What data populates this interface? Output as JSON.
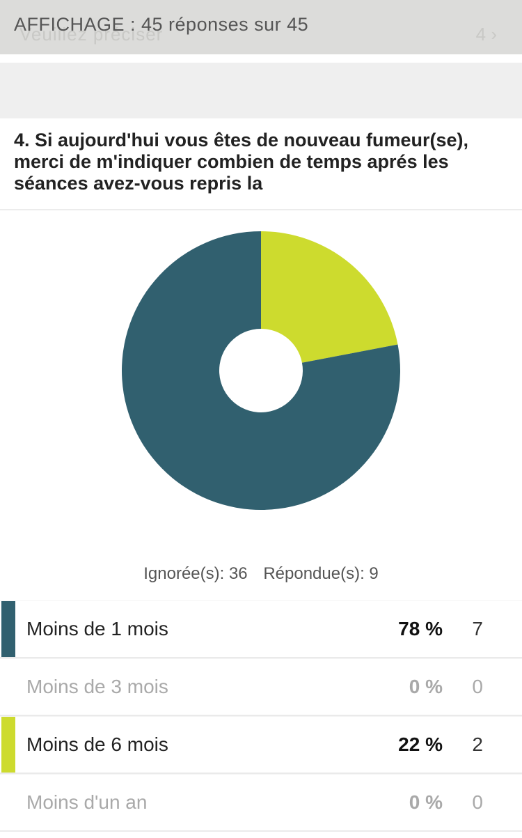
{
  "header": {
    "display_label": "AFFICHAGE : 45 réponses sur 45",
    "ghost_text": "Veuillez préciser",
    "ghost_number": "4 ›"
  },
  "question": {
    "text": "4. Si aujourd'hui vous êtes de nouveau fumeur(se), merci de m'indiquer combien de temps aprés les séances avez-vous repris la"
  },
  "summary": {
    "skipped": "Ignorée(s): 36",
    "answered": "Répondue(s): 9"
  },
  "answers": [
    {
      "label": "Moins de 1 mois",
      "pct": "78 %",
      "count": "7",
      "color": "#31606f",
      "muted": false
    },
    {
      "label": "Moins de 3 mois",
      "pct": "0 %",
      "count": "0",
      "color": "",
      "muted": true
    },
    {
      "label": "Moins de 6 mois",
      "pct": "22 %",
      "count": "2",
      "color": "#cddb2e",
      "muted": false
    },
    {
      "label": "Moins d'un an",
      "pct": "0 %",
      "count": "0",
      "color": "",
      "muted": true
    }
  ],
  "chart_data": {
    "type": "pie",
    "donut": true,
    "categories": [
      "Moins de 1 mois",
      "Moins de 3 mois",
      "Moins de 6 mois",
      "Moins d'un an"
    ],
    "values": [
      78,
      0,
      22,
      0
    ],
    "counts": [
      7,
      0,
      2,
      0
    ],
    "colors": [
      "#31606f",
      "#a9a9a9",
      "#cddb2e",
      "#a9a9a9"
    ]
  }
}
